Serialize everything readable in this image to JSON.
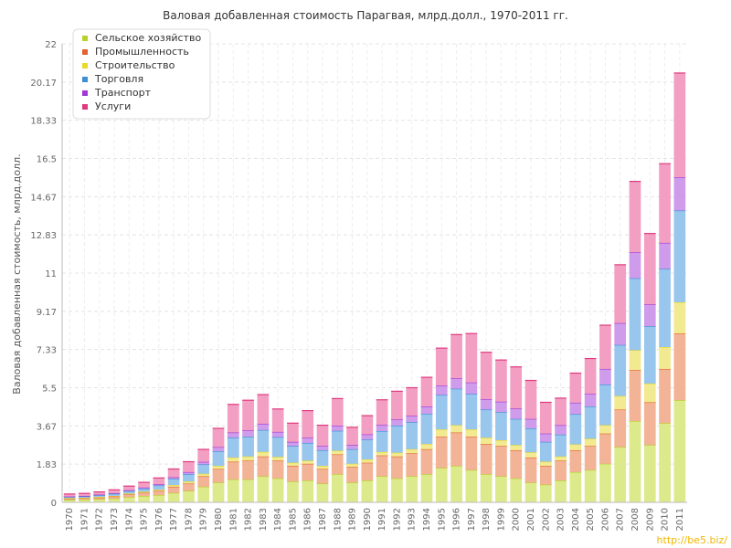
{
  "chart_data": {
    "type": "bar",
    "stacked": true,
    "title": "Валовая добавленная стоимость Парагвая, млрд.долл., 1970-2011 гг.",
    "xlabel": "",
    "ylabel": "Валовая добавленная стоимость, млрд.долл.",
    "ylim": [
      0,
      22
    ],
    "yticks": [
      "0",
      "1.83",
      "3.67",
      "5.5",
      "7.33",
      "9.17",
      "11",
      "12.83",
      "14.67",
      "16.5",
      "18.33",
      "20.17",
      "22"
    ],
    "grid": true,
    "legend_position": "top-left",
    "categories": [
      "1970",
      "1971",
      "1972",
      "1973",
      "1974",
      "1975",
      "1976",
      "1977",
      "1978",
      "1979",
      "1980",
      "1981",
      "1982",
      "1983",
      "1984",
      "1985",
      "1986",
      "1987",
      "1988",
      "1989",
      "1990",
      "1991",
      "1992",
      "1993",
      "1994",
      "1995",
      "1996",
      "1997",
      "1998",
      "1999",
      "2000",
      "2001",
      "2002",
      "2003",
      "2004",
      "2005",
      "2006",
      "2007",
      "2008",
      "2009",
      "2010",
      "2011"
    ],
    "series": [
      {
        "name": "Сельское хозяйство",
        "color": "#b9d02b",
        "fill": "#dcea8c",
        "values": [
          0.12,
          0.13,
          0.15,
          0.18,
          0.25,
          0.3,
          0.35,
          0.45,
          0.55,
          0.75,
          0.95,
          1.1,
          1.1,
          1.25,
          1.15,
          1.0,
          1.05,
          0.9,
          1.35,
          0.95,
          1.05,
          1.25,
          1.15,
          1.25,
          1.35,
          1.65,
          1.75,
          1.55,
          1.35,
          1.25,
          1.15,
          0.95,
          0.85,
          1.05,
          1.45,
          1.55,
          1.85,
          2.65,
          3.9,
          2.75,
          3.8,
          4.9
        ]
      },
      {
        "name": "Промышленность",
        "color": "#e2632f",
        "fill": "#f2b396",
        "values": [
          0.06,
          0.07,
          0.08,
          0.1,
          0.13,
          0.16,
          0.2,
          0.3,
          0.35,
          0.5,
          0.65,
          0.85,
          0.9,
          0.95,
          0.85,
          0.75,
          0.8,
          0.7,
          0.95,
          0.75,
          0.85,
          1.0,
          1.05,
          1.1,
          1.2,
          1.5,
          1.6,
          1.6,
          1.45,
          1.45,
          1.35,
          1.2,
          0.9,
          0.95,
          1.05,
          1.15,
          1.45,
          1.8,
          2.45,
          2.05,
          2.6,
          3.2
        ]
      },
      {
        "name": "Строительство",
        "color": "#e8d92a",
        "fill": "#f2ea90",
        "values": [
          0.02,
          0.02,
          0.03,
          0.03,
          0.04,
          0.05,
          0.06,
          0.08,
          0.1,
          0.12,
          0.15,
          0.2,
          0.2,
          0.22,
          0.18,
          0.15,
          0.15,
          0.15,
          0.18,
          0.15,
          0.16,
          0.17,
          0.18,
          0.2,
          0.25,
          0.35,
          0.35,
          0.35,
          0.3,
          0.28,
          0.25,
          0.25,
          0.2,
          0.2,
          0.28,
          0.35,
          0.4,
          0.65,
          0.95,
          0.9,
          1.05,
          1.5
        ]
      },
      {
        "name": "Торговля",
        "color": "#3d8fd6",
        "fill": "#99c6ec",
        "values": [
          0.06,
          0.07,
          0.08,
          0.1,
          0.12,
          0.15,
          0.2,
          0.3,
          0.35,
          0.45,
          0.7,
          0.95,
          0.95,
          1.05,
          0.95,
          0.8,
          0.85,
          0.75,
          0.95,
          0.7,
          0.95,
          1.0,
          1.3,
          1.3,
          1.45,
          1.65,
          1.75,
          1.7,
          1.35,
          1.35,
          1.25,
          1.15,
          0.95,
          1.05,
          1.45,
          1.55,
          1.95,
          2.45,
          3.45,
          2.75,
          3.75,
          4.4
        ]
      },
      {
        "name": "Транспорт",
        "color": "#a037d6",
        "fill": "#cf9ceb",
        "values": [
          0.02,
          0.02,
          0.03,
          0.03,
          0.04,
          0.05,
          0.06,
          0.07,
          0.1,
          0.12,
          0.2,
          0.25,
          0.3,
          0.3,
          0.25,
          0.2,
          0.25,
          0.2,
          0.25,
          0.2,
          0.25,
          0.3,
          0.3,
          0.3,
          0.35,
          0.45,
          0.5,
          0.55,
          0.5,
          0.5,
          0.5,
          0.45,
          0.4,
          0.45,
          0.55,
          0.6,
          0.75,
          1.05,
          1.25,
          1.05,
          1.25,
          1.6
        ]
      },
      {
        "name": "Услуги",
        "color": "#e03a7e",
        "fill": "#f29fc3",
        "values": [
          0.12,
          0.12,
          0.13,
          0.16,
          0.2,
          0.25,
          0.3,
          0.4,
          0.5,
          0.6,
          0.9,
          1.35,
          1.45,
          1.4,
          1.1,
          0.9,
          1.3,
          1.0,
          1.3,
          0.85,
          0.9,
          1.2,
          1.35,
          1.35,
          1.4,
          1.8,
          2.1,
          2.35,
          2.25,
          2.0,
          2.0,
          1.85,
          1.5,
          1.3,
          1.42,
          1.7,
          2.1,
          2.8,
          3.4,
          3.4,
          3.8,
          5.0
        ]
      }
    ]
  },
  "watermark": "http://be5.biz/"
}
